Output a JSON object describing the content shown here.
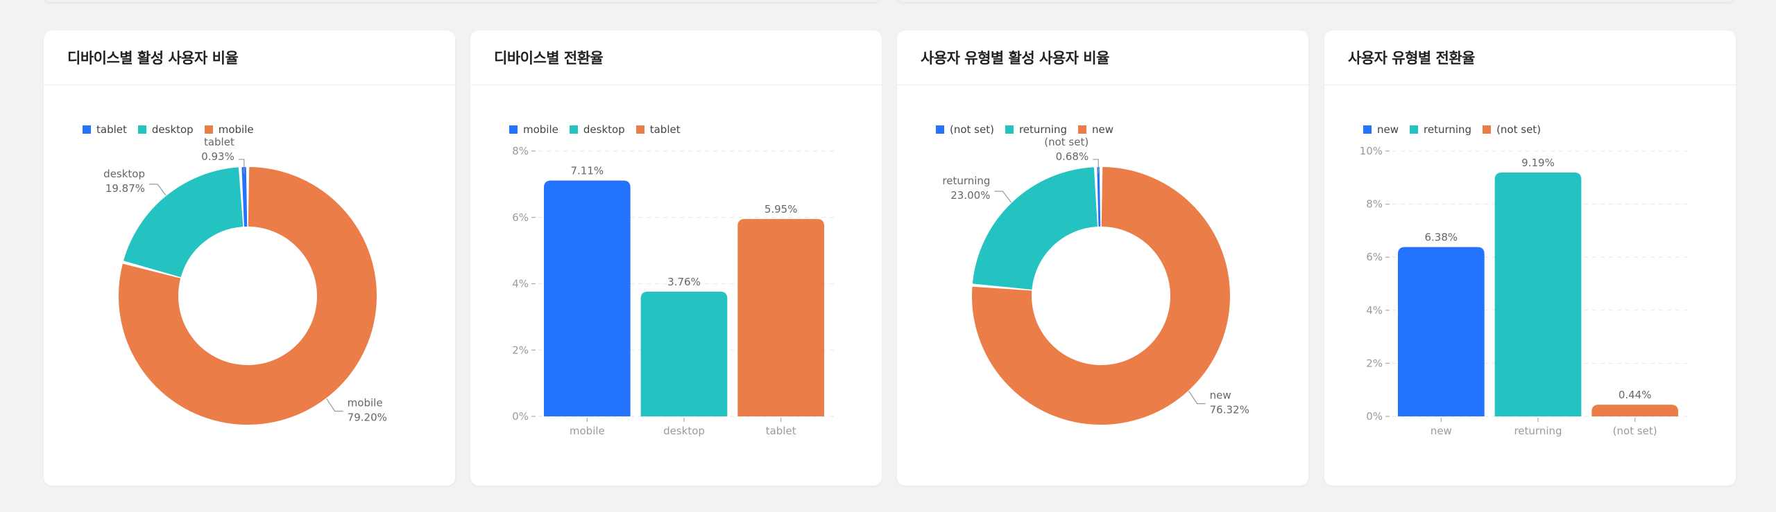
{
  "colors": {
    "blue": "#2473ff",
    "teal": "#24c2c0",
    "orange": "#eb7d48",
    "axis_text": "#9a9a9a",
    "label_text": "#666666",
    "grid": "#e6e6e6"
  },
  "cards": [
    {
      "title": "디바이스별 활성 사용자 비율",
      "legend": [
        {
          "label": "tablet",
          "color": "#2473ff"
        },
        {
          "label": "desktop",
          "color": "#24c2c0"
        },
        {
          "label": "mobile",
          "color": "#eb7d48"
        }
      ]
    },
    {
      "title": "디바이스별 전환율",
      "legend": [
        {
          "label": "mobile",
          "color": "#2473ff"
        },
        {
          "label": "desktop",
          "color": "#24c2c0"
        },
        {
          "label": "tablet",
          "color": "#eb7d48"
        }
      ]
    },
    {
      "title": "사용자 유형별 활성 사용자 비율",
      "legend": [
        {
          "label": "(not set)",
          "color": "#2473ff"
        },
        {
          "label": "returning",
          "color": "#24c2c0"
        },
        {
          "label": "new",
          "color": "#eb7d48"
        }
      ]
    },
    {
      "title": "사용자 유형별 전환율",
      "legend": [
        {
          "label": "new",
          "color": "#2473ff"
        },
        {
          "label": "returning",
          "color": "#24c2c0"
        },
        {
          "label": "(not set)",
          "color": "#eb7d48"
        }
      ]
    }
  ],
  "chart_data": [
    {
      "type": "pie",
      "donut": true,
      "title": "디바이스별 활성 사용자 비율",
      "categories": [
        "mobile",
        "desktop",
        "tablet"
      ],
      "values": [
        79.2,
        19.87,
        0.93
      ],
      "labels": [
        "79.20%",
        "19.87%",
        "0.93%"
      ],
      "colors": [
        "#eb7d48",
        "#24c2c0",
        "#2473ff"
      ],
      "legend": [
        "tablet",
        "desktop",
        "mobile"
      ],
      "legend_position": "top-left"
    },
    {
      "type": "bar",
      "title": "디바이스별 전환율",
      "categories": [
        "mobile",
        "desktop",
        "tablet"
      ],
      "values": [
        7.11,
        3.76,
        5.95
      ],
      "labels": [
        "7.11%",
        "3.76%",
        "5.95%"
      ],
      "colors": [
        "#2473ff",
        "#24c2c0",
        "#eb7d48"
      ],
      "xlabel": "",
      "ylabel": "",
      "ylim": [
        0,
        8
      ],
      "yticks": [
        "0%",
        "2%",
        "4%",
        "6%",
        "8%"
      ],
      "grid": true,
      "legend": [
        "mobile",
        "desktop",
        "tablet"
      ],
      "legend_position": "top-left"
    },
    {
      "type": "pie",
      "donut": true,
      "title": "사용자 유형별 활성 사용자 비율",
      "categories": [
        "new",
        "returning",
        "(not set)"
      ],
      "values": [
        76.32,
        23.0,
        0.68
      ],
      "labels": [
        "76.32%",
        "23.00%",
        "0.68%"
      ],
      "colors": [
        "#eb7d48",
        "#24c2c0",
        "#2473ff"
      ],
      "legend": [
        "(not set)",
        "returning",
        "new"
      ],
      "legend_position": "top-left"
    },
    {
      "type": "bar",
      "title": "사용자 유형별 전환율",
      "categories": [
        "new",
        "returning",
        "(not set)"
      ],
      "values": [
        6.38,
        9.19,
        0.44
      ],
      "labels": [
        "6.38%",
        "9.19%",
        "0.44%"
      ],
      "colors": [
        "#2473ff",
        "#24c2c0",
        "#eb7d48"
      ],
      "xlabel": "",
      "ylabel": "",
      "ylim": [
        0,
        10
      ],
      "yticks": [
        "0%",
        "2%",
        "4%",
        "6%",
        "8%",
        "10%"
      ],
      "grid": true,
      "legend": [
        "new",
        "returning",
        "(not set)"
      ],
      "legend_position": "top-left"
    }
  ]
}
